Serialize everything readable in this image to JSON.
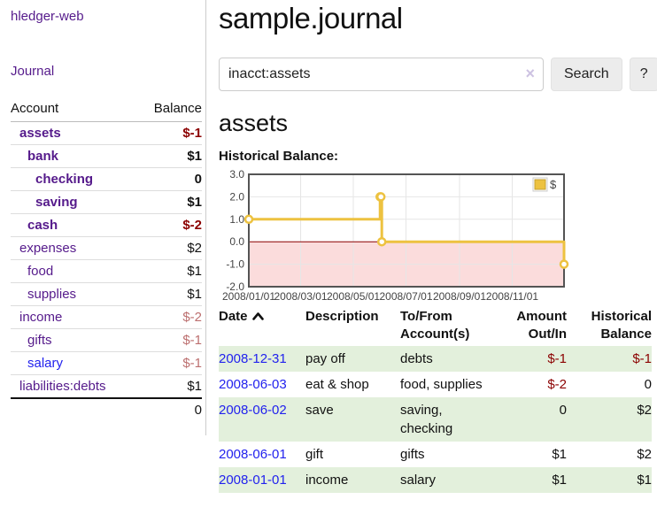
{
  "colors": {
    "accent_purple": "#551a8b",
    "link_blue": "#2222ee",
    "negative_strong": "#8b0000",
    "negative_muted": "#bc6f6f",
    "row_stripe_green": "#e3f0dc",
    "button_bg": "#ececec",
    "chart_line_gold": "#edc240",
    "chart_negative_fill": "#fbdcdc",
    "chart_zero_line": "#8b0000",
    "chart_border": "#545454"
  },
  "sidebar": {
    "app_title": "hledger-web",
    "journal_link": "Journal",
    "accounts": {
      "header_account": "Account",
      "header_balance": "Balance",
      "rows": [
        {
          "name": "assets",
          "balance": "$-1",
          "indent": 1,
          "bold": true,
          "balance_style": "strong",
          "link": "purple"
        },
        {
          "name": "bank",
          "balance": "$1",
          "indent": 2,
          "bold": true,
          "balance_style": "none",
          "link": "purple"
        },
        {
          "name": "checking",
          "balance": "0",
          "indent": 3,
          "bold": true,
          "balance_style": "none",
          "link": "purple"
        },
        {
          "name": "saving",
          "balance": "$1",
          "indent": 3,
          "bold": true,
          "balance_style": "none",
          "link": "purple"
        },
        {
          "name": "cash",
          "balance": "$-2",
          "indent": 2,
          "bold": true,
          "balance_style": "strong",
          "link": "purple"
        },
        {
          "name": "expenses",
          "balance": "$2",
          "indent": 1,
          "bold": false,
          "balance_style": "none",
          "link": "purple"
        },
        {
          "name": "food",
          "balance": "$1",
          "indent": 2,
          "bold": false,
          "balance_style": "none",
          "link": "purple"
        },
        {
          "name": "supplies",
          "balance": "$1",
          "indent": 2,
          "bold": false,
          "balance_style": "none",
          "link": "purple"
        },
        {
          "name": "income",
          "balance": "$-2",
          "indent": 1,
          "bold": false,
          "balance_style": "muted",
          "link": "purple"
        },
        {
          "name": "gifts",
          "balance": "$-1",
          "indent": 2,
          "bold": false,
          "balance_style": "muted",
          "link": "purple"
        },
        {
          "name": "salary",
          "balance": "$-1",
          "indent": 2,
          "bold": false,
          "balance_style": "muted",
          "link": "blue"
        },
        {
          "name": "liabilities:debts",
          "balance": "$1",
          "indent": 1,
          "bold": false,
          "balance_style": "none",
          "link": "purple"
        }
      ],
      "total": "0"
    }
  },
  "main": {
    "title": "sample.journal",
    "search": {
      "value": "inacct:assets",
      "clear_icon": "×",
      "search_button": "Search",
      "help_button": "?"
    },
    "account_heading": "assets",
    "section_label": "Historical Balance:"
  },
  "chart_data": {
    "type": "line",
    "step": true,
    "title": "Historical Balance:",
    "series": [
      {
        "name": "$",
        "color": "#edc240",
        "points": [
          [
            "2008-01-01",
            1
          ],
          [
            "2008-06-01",
            2
          ],
          [
            "2008-06-02",
            2
          ],
          [
            "2008-06-03",
            0
          ],
          [
            "2008-12-31",
            -1
          ]
        ]
      }
    ],
    "x_range": [
      "2008-01-01",
      "2008-12-31"
    ],
    "y_range": [
      -2,
      3
    ],
    "x_ticks": [
      "2008/01/01",
      "2008/03/01",
      "2008/05/01",
      "2008/07/01",
      "2008/09/01",
      "2008/11/01"
    ],
    "y_ticks": [
      "3.0",
      "2.0",
      "1.0",
      "0.0",
      "-1.0",
      "-2.0"
    ],
    "legend": {
      "label": "$",
      "position": "top-right"
    },
    "grid": true,
    "zero_line_color": "#8b0000",
    "negative_region_fill": "#fbdcdc",
    "border_color": "#545454"
  },
  "register": {
    "headers": [
      "Date",
      "Description",
      "To/From Account(s)",
      "Amount Out/In",
      "Historical Balance"
    ],
    "rows": [
      {
        "date": "2008-12-31",
        "description": "pay off",
        "accounts": "debts",
        "amount": "$-1",
        "balance": "$-1"
      },
      {
        "date": "2008-06-03",
        "description": "eat & shop",
        "accounts": "food, supplies",
        "amount": "$-2",
        "balance": "0"
      },
      {
        "date": "2008-06-02",
        "description": "save",
        "accounts": "saving, checking",
        "amount": "0",
        "balance": "$2"
      },
      {
        "date": "2008-06-01",
        "description": "gift",
        "accounts": "gifts",
        "amount": "$1",
        "balance": "$2"
      },
      {
        "date": "2008-01-01",
        "description": "income",
        "accounts": "salary",
        "amount": "$1",
        "balance": "$1"
      }
    ]
  }
}
